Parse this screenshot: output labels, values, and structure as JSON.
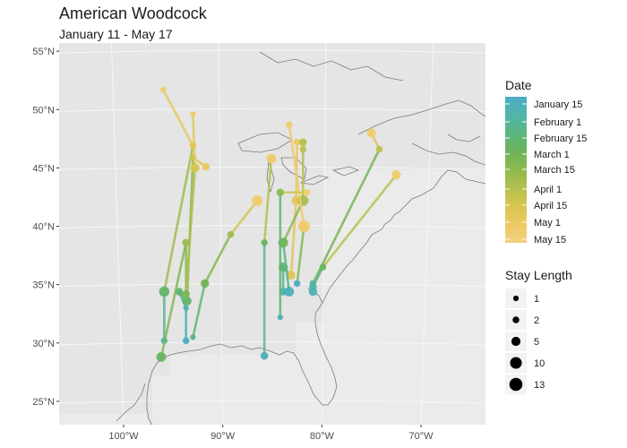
{
  "title": "American Woodcock",
  "subtitle": "January 11 - May 17",
  "axes": {
    "lat_ticks": [
      {
        "value": 55,
        "label": "55°N"
      },
      {
        "value": 50,
        "label": "50°N"
      },
      {
        "value": 45,
        "label": "45°N"
      },
      {
        "value": 40,
        "label": "40°N"
      },
      {
        "value": 35,
        "label": "35°N"
      },
      {
        "value": 30,
        "label": "30°N"
      },
      {
        "value": 25,
        "label": "25°N"
      }
    ],
    "lon_ticks": [
      {
        "value": -100,
        "label": "100°W"
      },
      {
        "value": -90,
        "label": "90°W"
      },
      {
        "value": -80,
        "label": "80°W"
      },
      {
        "value": -70,
        "label": "70°W"
      }
    ],
    "xlim": [
      -106.5,
      -63.5
    ],
    "ylim": [
      23,
      55.7
    ]
  },
  "colors": {
    "panel": "#e5e5e5",
    "ocean_raster": "#ebebeb",
    "grid": "#f6f6f6",
    "coastline": "#7a7a7a",
    "date_scale": [
      "#4aacc4",
      "#52b5a8",
      "#5ab67e",
      "#6db35a",
      "#8fb94f",
      "#b4c04f",
      "#d6c64f",
      "#eec964",
      "#f3d080"
    ]
  },
  "legend": {
    "date": {
      "title": "Date",
      "labels": [
        "January 15",
        "February 1",
        "February 15",
        "March 1",
        "March 15",
        "April 1",
        "April 15",
        "May 1",
        "May 15"
      ]
    },
    "stay": {
      "title": "Stay Length",
      "items": [
        {
          "value": 1,
          "label": "1"
        },
        {
          "value": 2,
          "label": "2"
        },
        {
          "value": 5,
          "label": "5"
        },
        {
          "value": 10,
          "label": "10"
        },
        {
          "value": 13,
          "label": "13"
        }
      ]
    }
  },
  "chart_data": {
    "type": "map-tracks",
    "date_domain": [
      "January 11",
      "May 17"
    ],
    "tracks": [
      {
        "points": [
          {
            "lon": -95.9,
            "lat": 30.2,
            "date": 20,
            "stay": 2
          },
          {
            "lon": -95.9,
            "lat": 34.4,
            "date": 50,
            "stay": 7
          },
          {
            "lon": -93.0,
            "lat": 46.9,
            "date": 110,
            "stay": 2
          },
          {
            "lon": -96.0,
            "lat": 51.7,
            "date": 125,
            "stay": 1
          }
        ]
      },
      {
        "points": [
          {
            "lon": -93.7,
            "lat": 30.2,
            "date": 15,
            "stay": 2
          },
          {
            "lon": -93.7,
            "lat": 33.0,
            "date": 20,
            "stay": 1
          },
          {
            "lon": -94.4,
            "lat": 34.4,
            "date": 45,
            "stay": 3
          },
          {
            "lon": -93.6,
            "lat": 33.6,
            "date": 50,
            "stay": 5
          },
          {
            "lon": -93.0,
            "lat": 45.9,
            "date": 100,
            "stay": 2
          },
          {
            "lon": -91.7,
            "lat": 45.1,
            "date": 118,
            "stay": 3
          }
        ]
      },
      {
        "points": [
          {
            "lon": -96.2,
            "lat": 28.8,
            "date": 55,
            "stay": 6
          },
          {
            "lon": -93.7,
            "lat": 38.6,
            "date": 80,
            "stay": 3
          },
          {
            "lon": -93.7,
            "lat": 34.2,
            "date": 65,
            "stay": 3
          },
          {
            "lon": -92.8,
            "lat": 45.0,
            "date": 105,
            "stay": 5
          },
          {
            "lon": -93.0,
            "lat": 49.6,
            "date": 122,
            "stay": 1
          }
        ]
      },
      {
        "points": [
          {
            "lon": -93.0,
            "lat": 30.5,
            "date": 40,
            "stay": 1
          },
          {
            "lon": -91.8,
            "lat": 35.1,
            "date": 60,
            "stay": 4
          },
          {
            "lon": -89.2,
            "lat": 39.3,
            "date": 80,
            "stay": 2
          },
          {
            "lon": -86.5,
            "lat": 42.2,
            "date": 128,
            "stay": 8
          }
        ]
      },
      {
        "points": [
          {
            "lon": -85.8,
            "lat": 28.9,
            "date": 15,
            "stay": 3
          },
          {
            "lon": -85.8,
            "lat": 38.6,
            "date": 55,
            "stay": 2
          },
          {
            "lon": -85.1,
            "lat": 45.8,
            "date": 124,
            "stay": 6
          }
        ]
      },
      {
        "points": [
          {
            "lon": -83.9,
            "lat": 34.4,
            "date": 20,
            "stay": 3
          },
          {
            "lon": -83.9,
            "lat": 36.5,
            "date": 48,
            "stay": 5
          },
          {
            "lon": -83.1,
            "lat": 35.8,
            "date": 110,
            "stay": 4
          },
          {
            "lon": -82.6,
            "lat": 42.2,
            "date": 115,
            "stay": 5
          },
          {
            "lon": -82.5,
            "lat": 47.2,
            "date": 120,
            "stay": 2
          },
          {
            "lon": -81.9,
            "lat": 47.2,
            "date": 90,
            "stay": 3
          }
        ]
      },
      {
        "points": [
          {
            "lon": -83.3,
            "lat": 34.4,
            "date": 18,
            "stay": 6
          },
          {
            "lon": -83.9,
            "lat": 38.6,
            "date": 60,
            "stay": 6
          },
          {
            "lon": -81.9,
            "lat": 42.2,
            "date": 85,
            "stay": 8
          },
          {
            "lon": -81.9,
            "lat": 46.6,
            "date": 95,
            "stay": 2
          }
        ]
      },
      {
        "points": [
          {
            "lon": -82.5,
            "lat": 35.1,
            "date": 15,
            "stay": 2
          },
          {
            "lon": -81.8,
            "lat": 40.0,
            "date": 125,
            "stay": 10
          },
          {
            "lon": -83.3,
            "lat": 48.7,
            "date": 128,
            "stay": 2
          }
        ]
      },
      {
        "points": [
          {
            "lon": -84.2,
            "lat": 32.2,
            "date": 20,
            "stay": 1
          },
          {
            "lon": -84.2,
            "lat": 42.9,
            "date": 75,
            "stay": 3
          },
          {
            "lon": -81.5,
            "lat": 42.9,
            "date": 130,
            "stay": 2
          }
        ]
      },
      {
        "points": [
          {
            "lon": -80.9,
            "lat": 34.4,
            "date": 22,
            "stay": 4
          },
          {
            "lon": -80.9,
            "lat": 35.1,
            "date": 30,
            "stay": 2
          },
          {
            "lon": -74.2,
            "lat": 46.6,
            "date": 95,
            "stay": 2
          },
          {
            "lon": -75.0,
            "lat": 48.0,
            "date": 125,
            "stay": 5
          }
        ]
      },
      {
        "points": [
          {
            "lon": -80.9,
            "lat": 34.8,
            "date": 25,
            "stay": 3
          },
          {
            "lon": -79.9,
            "lat": 36.5,
            "date": 55,
            "stay": 2
          },
          {
            "lon": -72.5,
            "lat": 44.4,
            "date": 128,
            "stay": 5
          }
        ]
      }
    ]
  }
}
